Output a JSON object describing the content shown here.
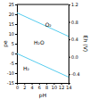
{
  "chart_data": {
    "type": "line",
    "xlabel": "pH",
    "ylabel": "pe",
    "y2label": "Eh (V)",
    "xlim": [
      0,
      14
    ],
    "ylim": [
      -15,
      25
    ],
    "y2lim": [
      -0.6,
      1.2
    ],
    "xticks": [
      0,
      2,
      4,
      6,
      8,
      10,
      12,
      14
    ],
    "yticks": [
      -15,
      -10,
      -5,
      0,
      5,
      10,
      15,
      20,
      25
    ],
    "y2ticks": [
      -0.4,
      {
        "value": 0.0,
        "label": "0.0"
      },
      0.4,
      0.8,
      1.2
    ],
    "grid": false,
    "series": [
      {
        "x": [
          0,
          14
        ],
        "values": [
          20.75,
          8.75
        ],
        "color": "#55ccee"
      },
      {
        "x": [
          0,
          14
        ],
        "values": [
          0.0,
          -12.0
        ],
        "color": "#55ccee"
      }
    ],
    "annotations": [
      {
        "text": "O₂",
        "x": 8.5,
        "y": 15.0
      },
      {
        "text": "H₂O",
        "x": 6.0,
        "y": 5.5
      },
      {
        "text": "H₂",
        "x": 2.5,
        "y": -7.5
      }
    ]
  }
}
